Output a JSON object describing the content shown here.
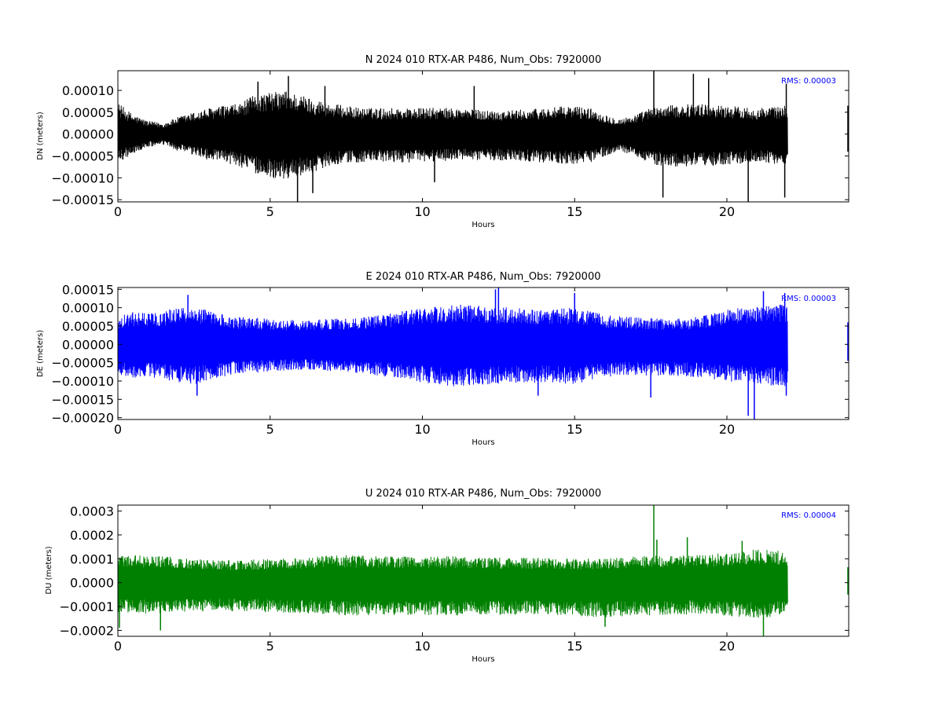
{
  "chart_data": [
    {
      "type": "line",
      "title": "N 2024 010 RTX-AR  P486, Num_Obs: 7920000",
      "xlabel": "Hours",
      "ylabel": "DN (meters)",
      "xlim": [
        0,
        24
      ],
      "ylim": [
        -0.000155,
        0.000145
      ],
      "xticks": [
        0,
        5,
        10,
        15,
        20
      ],
      "xtick_labels": [
        "0",
        "5",
        "10",
        "15",
        "20"
      ],
      "yticks": [
        0.0001,
        5e-05,
        0.0,
        -5e-05,
        -0.0001,
        -0.00015
      ],
      "ytick_labels": [
        "0.00010",
        "0.00005",
        "0.00000",
        "−0.00005",
        "−0.00010",
        "−0.00015"
      ],
      "rms_label": "RMS:  0.00003",
      "grid": false,
      "data_end_hour": 22.0,
      "data_resume_hour": 23.98,
      "series": [
        {
          "color": "#000000",
          "envelope": {
            "hours": [
              0,
              0.5,
              1.0,
              1.5,
              2.0,
              3.0,
              4.0,
              4.5,
              5.0,
              5.5,
              6.0,
              6.5,
              7.0,
              8.0,
              9.0,
              10.0,
              11.0,
              12.0,
              13.0,
              14.0,
              15.0,
              15.5,
              16.0,
              16.5,
              17.0,
              17.5,
              18.0,
              19.0,
              20.0,
              21.0,
              22.0
            ],
            "upper": [
              7.2e-05,
              4.5e-05,
              3e-05,
              2.5e-05,
              4e-05,
              6e-05,
              7e-05,
              9e-05,
              9.5e-05,
              0.0001,
              9e-05,
              8e-05,
              7e-05,
              6e-05,
              6e-05,
              6e-05,
              6e-05,
              5.5e-05,
              5.5e-05,
              6e-05,
              6.5e-05,
              6e-05,
              4.5e-05,
              3.5e-05,
              4.5e-05,
              6e-05,
              6.5e-05,
              7e-05,
              6.5e-05,
              6e-05,
              6.5e-05
            ],
            "lower": [
              -6.5e-05,
              -4.5e-05,
              -3e-05,
              -2.5e-05,
              -4e-05,
              -6e-05,
              -7.5e-05,
              -9e-05,
              -0.0001,
              -0.000105,
              -9.5e-05,
              -8.5e-05,
              -7e-05,
              -6.5e-05,
              -6.5e-05,
              -6.5e-05,
              -6e-05,
              -6e-05,
              -6e-05,
              -6.5e-05,
              -7e-05,
              -6.5e-05,
              -5e-05,
              -4e-05,
              -5e-05,
              -7e-05,
              -7.5e-05,
              -7.5e-05,
              -7e-05,
              -6.5e-05,
              -7e-05
            ]
          },
          "spikes": [
            [
              4.6,
              0.00012
            ],
            [
              5.6,
              0.000133
            ],
            [
              5.9,
              -0.000155
            ],
            [
              6.4,
              -0.000135
            ],
            [
              6.8,
              0.00011
            ],
            [
              10.4,
              -0.00011
            ],
            [
              11.7,
              0.00011
            ],
            [
              17.6,
              0.00015
            ],
            [
              17.9,
              -0.000145
            ],
            [
              18.9,
              0.000138
            ],
            [
              19.4,
              0.000128
            ],
            [
              20.7,
              -0.00016
            ],
            [
              21.9,
              -0.000145
            ],
            [
              21.95,
              0.000115
            ]
          ],
          "tail": [
            6.5e-05,
            -4e-05
          ]
        }
      ]
    },
    {
      "type": "line",
      "title": "E 2024 010 RTX-AR  P486, Num_Obs: 7920000",
      "xlabel": "Hours",
      "ylabel": "DE (meters)",
      "xlim": [
        0,
        24
      ],
      "ylim": [
        -0.000205,
        0.000155
      ],
      "xticks": [
        0,
        5,
        10,
        15,
        20
      ],
      "xtick_labels": [
        "0",
        "5",
        "10",
        "15",
        "20"
      ],
      "yticks": [
        0.00015,
        0.0001,
        5e-05,
        0.0,
        -5e-05,
        -0.0001,
        -0.00015,
        -0.0002
      ],
      "ytick_labels": [
        "0.00015",
        "0.00010",
        "0.00005",
        "0.00000",
        "−0.00005",
        "−0.00010",
        "−0.00015",
        "−0.00020"
      ],
      "rms_label": "RMS:  0.00003",
      "grid": false,
      "data_end_hour": 22.0,
      "data_resume_hour": 23.98,
      "series": [
        {
          "color": "#0000ff",
          "envelope": {
            "hours": [
              0,
              0.5,
              1.0,
              1.5,
              2.0,
              2.5,
              3.0,
              4.0,
              5.0,
              6.0,
              7.0,
              8.0,
              9.0,
              10.0,
              11.0,
              12.0,
              13.0,
              14.0,
              15.0,
              16.0,
              17.0,
              18.0,
              19.0,
              20.0,
              21.0,
              22.0
            ],
            "upper": [
              7.5e-05,
              9e-05,
              8.5e-05,
              9e-05,
              0.000105,
              0.00011,
              9e-05,
              7.5e-05,
              7e-05,
              6.5e-05,
              7e-05,
              7.5e-05,
              8.5e-05,
              0.0001,
              0.00011,
              0.000105,
              0.0001,
              9.5e-05,
              0.0001,
              8e-05,
              7.5e-05,
              7e-05,
              7.5e-05,
              9.5e-05,
              0.000105,
              0.00011
            ],
            "lower": [
              -8e-05,
              -9.5e-05,
              -9e-05,
              -9.5e-05,
              -0.000105,
              -0.00011,
              -9.5e-05,
              -8e-05,
              -7.5e-05,
              -7e-05,
              -7.5e-05,
              -8e-05,
              -9e-05,
              -0.000105,
              -0.000115,
              -0.00011,
              -0.000105,
              -0.000105,
              -0.00011,
              -9e-05,
              -8.5e-05,
              -8.5e-05,
              -9e-05,
              -0.0001,
              -0.00011,
              -0.000115
            ]
          },
          "spikes": [
            [
              2.3,
              0.000135
            ],
            [
              2.6,
              -0.00014
            ],
            [
              12.5,
              0.000155
            ],
            [
              12.4,
              0.00015
            ],
            [
              13.8,
              -0.00014
            ],
            [
              15.0,
              0.00014
            ],
            [
              17.5,
              -0.000145
            ],
            [
              20.7,
              -0.000195
            ],
            [
              20.9,
              -0.000205
            ],
            [
              21.2,
              0.000145
            ],
            [
              21.9,
              0.00014
            ],
            [
              21.95,
              -0.00014
            ]
          ],
          "tail": [
            6e-05,
            -4.5e-05
          ]
        }
      ]
    },
    {
      "type": "line",
      "title": "U 2024 010 RTX-AR  P486, Num_Obs: 7920000",
      "xlabel": "Hours",
      "ylabel": "DU (meters)",
      "xlim": [
        0,
        24
      ],
      "ylim": [
        -0.000225,
        0.000325
      ],
      "xticks": [
        0,
        5,
        10,
        15,
        20
      ],
      "xtick_labels": [
        "0",
        "5",
        "10",
        "15",
        "20"
      ],
      "yticks": [
        0.0003,
        0.0002,
        0.0001,
        0.0,
        -0.0001,
        -0.0002
      ],
      "ytick_labels": [
        "0.0003",
        "0.0002",
        "0.0001",
        "0.0000",
        "−0.0001",
        "−0.0002"
      ],
      "rms_label": "RMS:  0.00004",
      "grid": false,
      "data_end_hour": 22.0,
      "data_resume_hour": 23.98,
      "series": [
        {
          "color": "#008000",
          "envelope": {
            "hours": [
              0,
              1.0,
              2.0,
              3.0,
              4.0,
              5.0,
              6.0,
              7.0,
              8.0,
              9.0,
              10.0,
              11.0,
              12.0,
              13.0,
              14.0,
              15.0,
              16.0,
              17.0,
              18.0,
              19.0,
              20.0,
              21.0,
              22.0
            ],
            "upper": [
              0.00012,
              0.000115,
              0.000105,
              9.5e-05,
              9.5e-05,
              0.0001,
              0.000105,
              0.000115,
              0.000115,
              0.00011,
              0.00011,
              0.00011,
              0.000105,
              0.000105,
              0.000105,
              0.0001,
              0.0001,
              0.00011,
              0.000115,
              0.000115,
              0.000125,
              0.00014,
              0.00013
            ],
            "lower": [
              -0.000125,
              -0.00013,
              -0.000125,
              -0.00012,
              -0.00012,
              -0.000125,
              -0.00013,
              -0.000135,
              -0.00014,
              -0.00014,
              -0.000135,
              -0.00014,
              -0.000135,
              -0.000135,
              -0.000135,
              -0.00014,
              -0.000145,
              -0.00014,
              -0.000135,
              -0.000135,
              -0.00014,
              -0.00015,
              -0.000135
            ]
          },
          "spikes": [
            [
              0.05,
              -0.00019
            ],
            [
              1.4,
              -0.0002
            ],
            [
              16.0,
              -0.000185
            ],
            [
              17.6,
              0.000325
            ],
            [
              17.7,
              0.00018
            ],
            [
              18.7,
              0.00019
            ],
            [
              20.5,
              0.000175
            ],
            [
              21.2,
              -0.00023
            ]
          ],
          "tail": [
            6.5e-05,
            -5e-05
          ]
        }
      ]
    }
  ]
}
